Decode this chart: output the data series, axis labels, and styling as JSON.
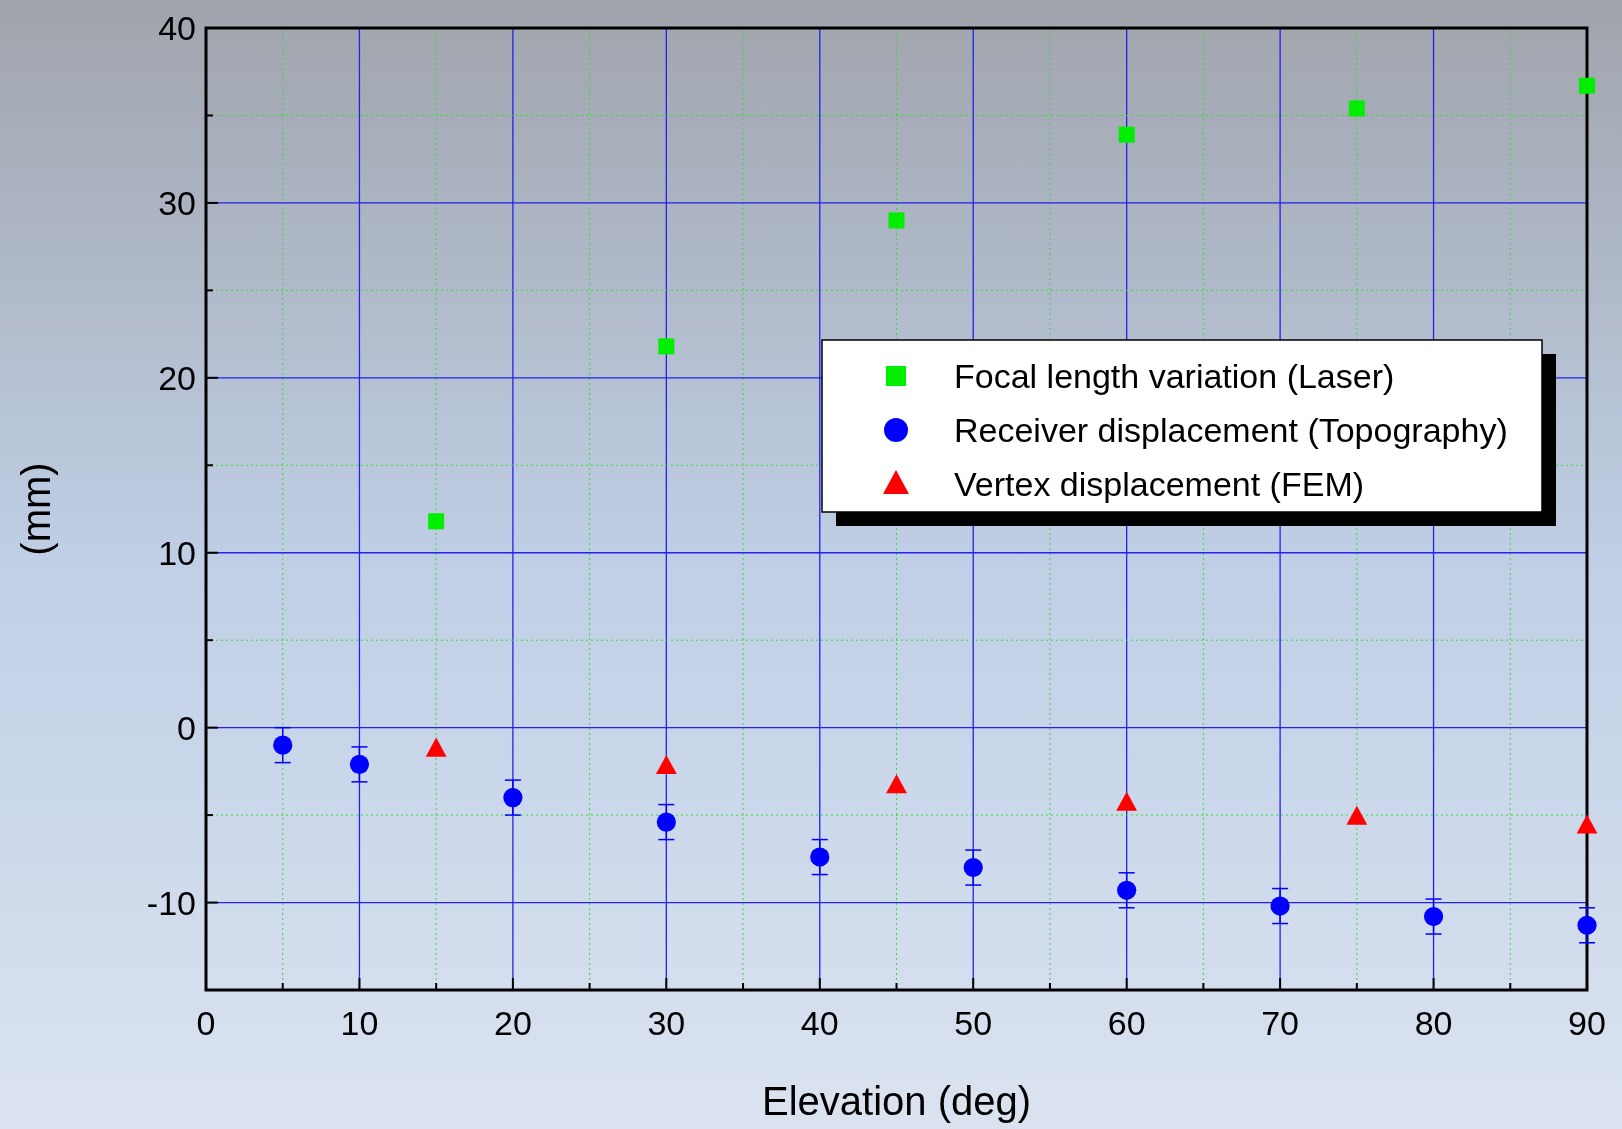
{
  "chart_data": {
    "type": "scatter",
    "xlabel": "Elevation (deg)",
    "ylabel": "(mm)",
    "xlim": [
      0,
      90
    ],
    "ylim": [
      -15,
      40
    ],
    "xticks": [
      0,
      {
        "value": 5,
        "label": null
      },
      10,
      {
        "value": 15,
        "label": null
      },
      20,
      {
        "value": 25,
        "label": null
      },
      30,
      {
        "value": 35,
        "label": null
      },
      40,
      {
        "value": 45,
        "label": null
      },
      50,
      {
        "value": 55,
        "label": null
      },
      60,
      {
        "value": 65,
        "label": null
      },
      70,
      {
        "value": 75,
        "label": null
      },
      80,
      {
        "value": 85,
        "label": null
      },
      90
    ],
    "yticks": [
      {
        "value": -15,
        "label": null
      },
      -10,
      {
        "value": -5,
        "label": null
      },
      0,
      {
        "value": 5,
        "label": null
      },
      10,
      {
        "value": 15,
        "label": null
      },
      20,
      {
        "value": 25,
        "label": null
      },
      30,
      {
        "value": 35,
        "label": null
      },
      40
    ],
    "grid": true,
    "legend": "right",
    "series": [
      {
        "name": "Focal length variation (Laser)",
        "color": "#00ee00",
        "marker": "square",
        "x": [
          15,
          30,
          45,
          60,
          75,
          90
        ],
        "values": [
          11.8,
          21.8,
          29,
          33.9,
          35.4,
          36.7
        ]
      },
      {
        "name": "Receiver displacement (Topography)",
        "color": "#0000ff",
        "marker": "circle",
        "x": [
          5,
          10,
          20,
          30,
          40,
          50,
          60,
          70,
          80,
          90
        ],
        "values": [
          -1,
          -2.1,
          -4,
          -5.4,
          -7.4,
          -8,
          -9.3,
          -10.2,
          -10.8,
          -11.3
        ],
        "errors": [
          1,
          1,
          1,
          1,
          1,
          1,
          1,
          1,
          1,
          1
        ]
      },
      {
        "name": "Vertex displacement (FEM)",
        "color": "#ff0000",
        "marker": "triangle",
        "x": [
          15,
          30,
          45,
          60,
          75,
          90
        ],
        "values": [
          -1.2,
          -2.2,
          -3.3,
          -4.3,
          -5.1,
          -5.6
        ]
      }
    ]
  }
}
